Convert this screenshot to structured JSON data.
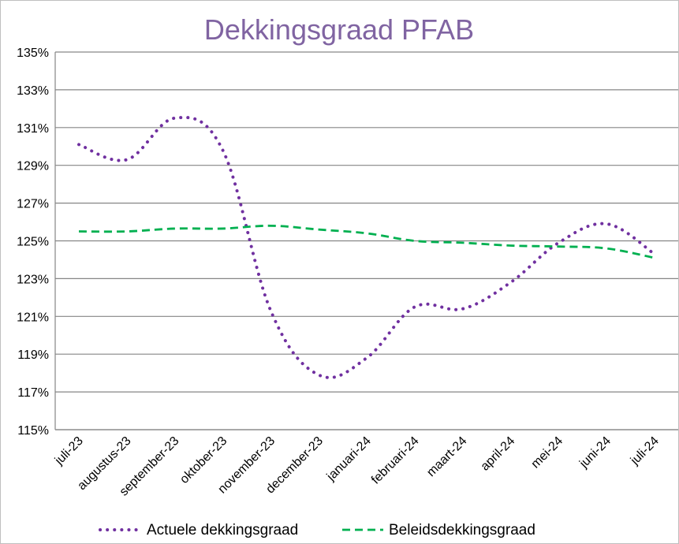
{
  "chart_data": {
    "type": "line",
    "title": "Dekkingsgraad  PFAB",
    "xlabel": "",
    "ylabel": "",
    "categories": [
      "juli-23",
      "augustus-23",
      "september-23",
      "oktober-23",
      "november-23",
      "december-23",
      "januari-24",
      "februari-24",
      "maart-24",
      "april-24",
      "mei-24",
      "juni-24",
      "juli-24"
    ],
    "ylim": [
      115,
      135
    ],
    "y_ticks": [
      115,
      117,
      119,
      121,
      123,
      125,
      127,
      129,
      131,
      133,
      135
    ],
    "y_tick_labels": [
      "115%",
      "117%",
      "119%",
      "121%",
      "123%",
      "125%",
      "127%",
      "129%",
      "131%",
      "133%",
      "135%"
    ],
    "grid": true,
    "legend_position": "bottom",
    "series": [
      {
        "name": "Actuele dekkingsgraad",
        "values": [
          130.1,
          129.3,
          131.5,
          129.8,
          121.3,
          117.9,
          118.8,
          121.5,
          121.4,
          122.8,
          124.9,
          125.9,
          124.3
        ],
        "color": "#7030a0",
        "style": "dotted"
      },
      {
        "name": "Beleidsdekkingsgraad",
        "values": [
          125.5,
          125.5,
          125.65,
          125.65,
          125.8,
          125.6,
          125.4,
          125.0,
          124.9,
          124.75,
          124.7,
          124.6,
          124.1
        ],
        "color": "#00b050",
        "style": "dashed"
      }
    ]
  }
}
